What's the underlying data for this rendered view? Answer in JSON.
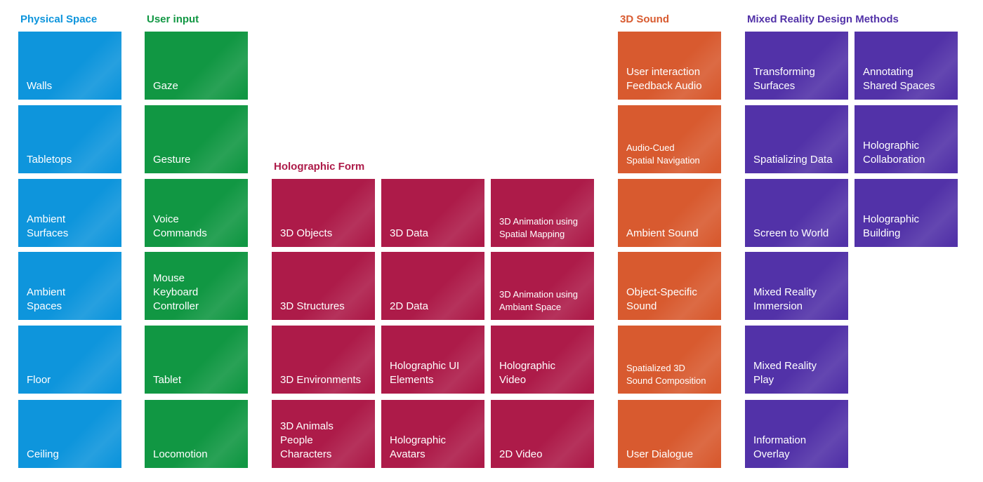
{
  "colors": {
    "physical_space": "#0e95dc",
    "user_input": "#119743",
    "holographic_form": "#ad1b49",
    "sound_3d": "#d85a2f",
    "design_methods": "#5232a8"
  },
  "physical_space": {
    "title": "Physical Space",
    "items": [
      "Walls",
      "Tabletops",
      "Ambient\nSurfaces",
      "Ambient\nSpaces",
      "Floor",
      "Ceiling"
    ]
  },
  "user_input": {
    "title": "User input",
    "items": [
      "Gaze",
      "Gesture",
      "Voice\nCommands",
      "Mouse\nKeyboard\nController",
      "Tablet",
      "Locomotion"
    ]
  },
  "holographic_form": {
    "title": "Holographic Form",
    "rows": [
      [
        "3D Objects",
        "3D Data",
        "3D Animation using\nSpatial Mapping"
      ],
      [
        "3D Structures",
        "2D Data",
        "3D Animation using\nAmbiant Space"
      ],
      [
        "3D Environments",
        "Holographic UI\nElements",
        "Holographic\nVideo"
      ],
      [
        "3D Animals\nPeople\nCharacters",
        "Holographic\nAvatars",
        "2D Video"
      ]
    ]
  },
  "sound_3d": {
    "title": "3D Sound",
    "items": [
      "User interaction\nFeedback Audio",
      "Audio-Cued\nSpatial Navigation",
      "Ambient Sound",
      "Object-Specific\nSound",
      "Spatialized 3D\nSound Composition",
      "User Dialogue"
    ]
  },
  "design_methods": {
    "title": "Mixed Reality Design Methods",
    "col1": [
      "Transforming\nSurfaces",
      "Spatializing Data",
      "Screen to World",
      "Mixed Reality\nImmersion",
      "Mixed Reality\nPlay",
      "Information\nOverlay"
    ],
    "col2": [
      "Annotating\nShared Spaces",
      "Holographic\nCollaboration",
      "Holographic\nBuilding"
    ]
  }
}
